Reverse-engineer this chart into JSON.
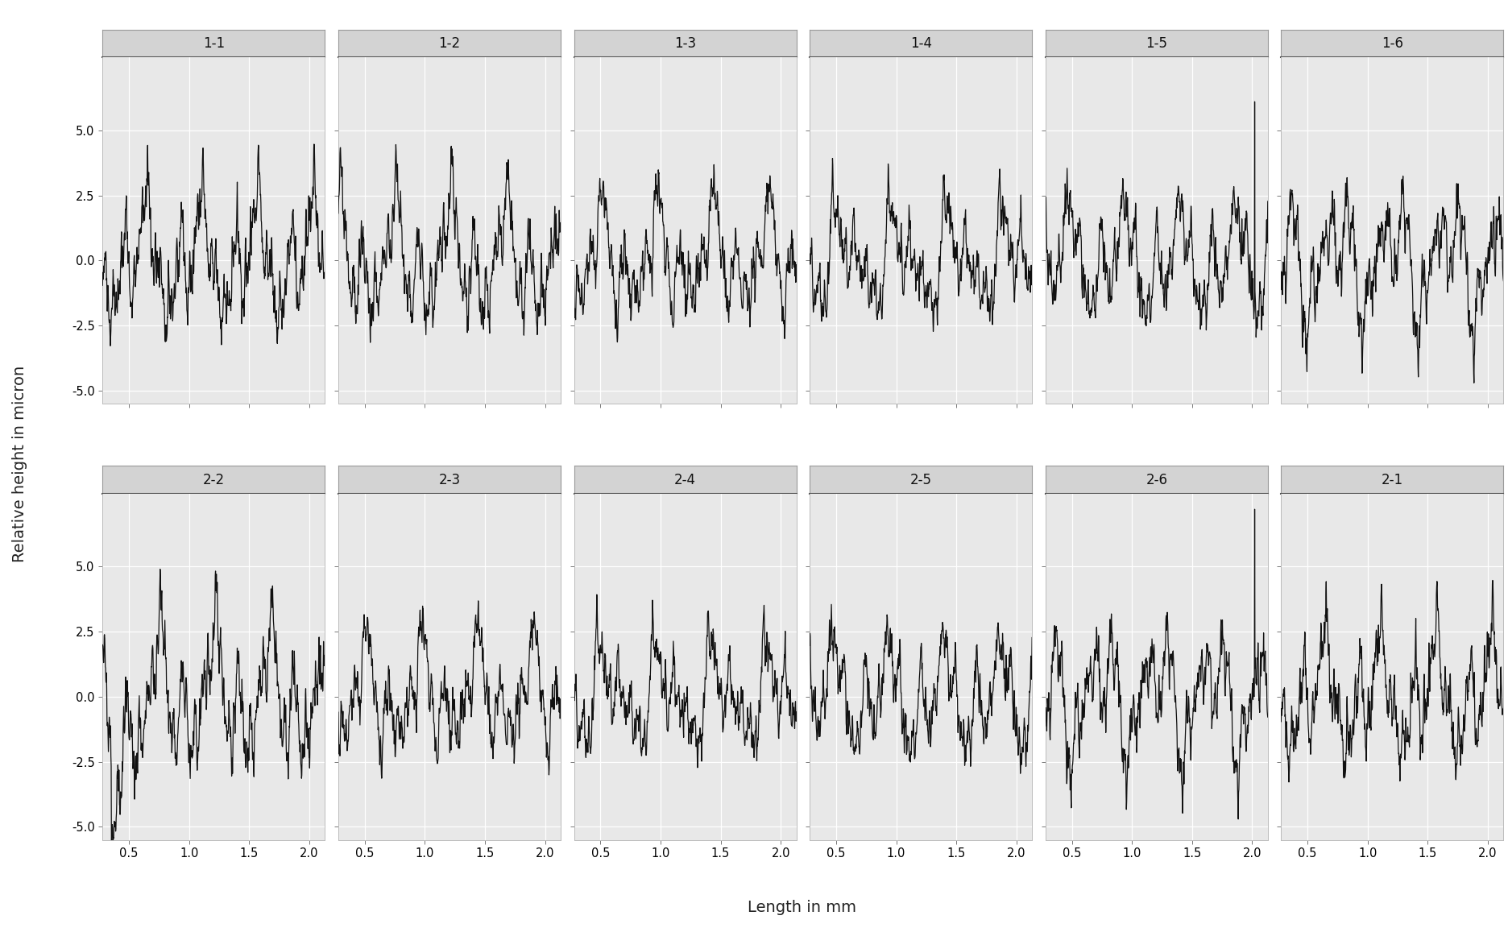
{
  "panel_titles_row1": [
    "1-1",
    "1-2",
    "1-3",
    "1-4",
    "1-5",
    "1-6"
  ],
  "panel_titles_row2": [
    "2-2",
    "2-3",
    "2-4",
    "2-5",
    "2-6",
    "2-1"
  ],
  "x_label": "Length in mm",
  "y_label": "Relative height in micron",
  "x_min": 0.28,
  "x_max": 2.13,
  "y_min": -5.5,
  "y_max": 7.8,
  "y_ticks": [
    -5.0,
    -2.5,
    0.0,
    2.5,
    5.0
  ],
  "x_ticks": [
    0.5,
    1.0,
    1.5,
    2.0
  ],
  "line_color": "#111111",
  "line_width": 0.9,
  "panel_facecolor": "#e8e8e8",
  "strip_bg": "#d3d3d3",
  "strip_border": "#999999",
  "grid_color": "#ffffff",
  "fig_bg": "#ffffff",
  "strip_fontsize": 12,
  "axis_label_fontsize": 14,
  "tick_fontsize": 10.5,
  "n_points": 800
}
